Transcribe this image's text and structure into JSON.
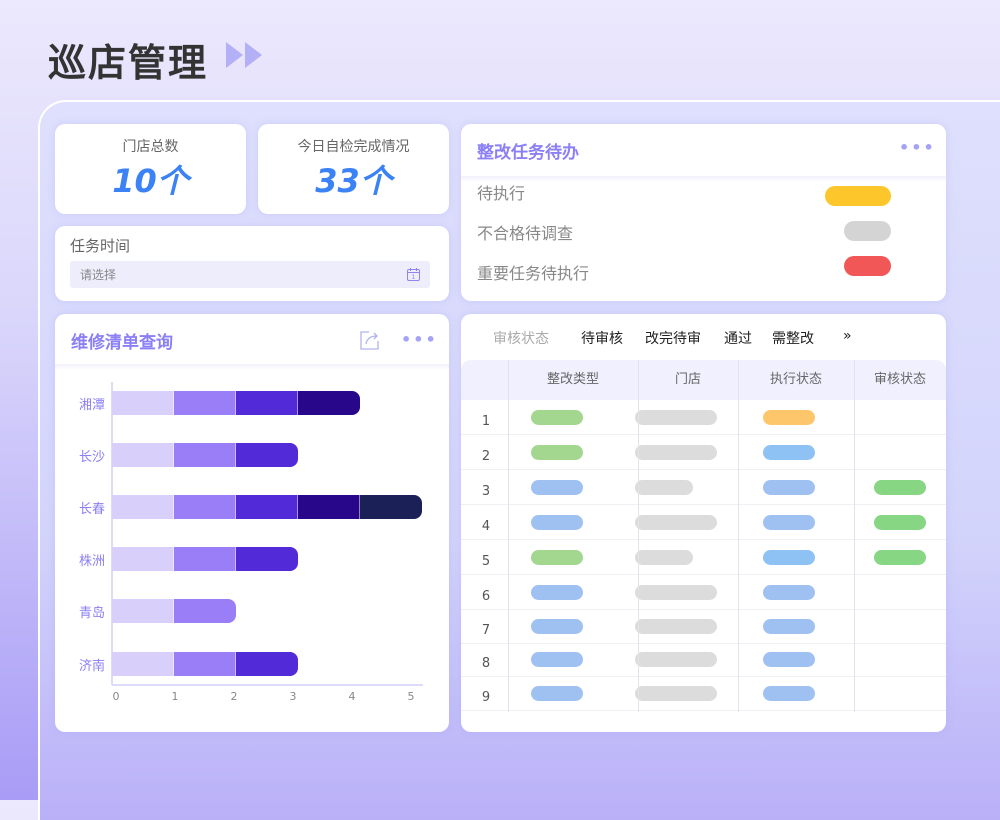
{
  "header": {
    "title": "巡店管理",
    "arrow_icon": "double-play-icon"
  },
  "stats": [
    {
      "label": "门店总数",
      "value": "10个"
    },
    {
      "label": "今日自检完成情况",
      "value": "33个"
    }
  ],
  "task_time": {
    "label": "任务时间",
    "placeholder": "请选择",
    "icon": "calendar-icon"
  },
  "todo": {
    "title": "整改任务待办",
    "items": [
      {
        "label": "待执行",
        "color": "#fdc72c"
      },
      {
        "label": "不合格待调查",
        "color": "#d4d4d4"
      },
      {
        "label": "重要任务待执行",
        "color": "#f25757"
      }
    ]
  },
  "repair": {
    "title": "维修清单查询"
  },
  "chart_data": {
    "type": "bar",
    "orientation": "horizontal",
    "stacked": true,
    "categories": [
      "湘潭",
      "长沙",
      "长春",
      "株洲",
      "青岛",
      "济南"
    ],
    "series": [
      {
        "values": [
          1,
          1,
          1,
          1,
          1,
          1
        ],
        "color": "#d9cffb"
      },
      {
        "values": [
          1,
          1,
          1,
          1,
          1,
          1
        ],
        "color": "#9a7ef7"
      },
      {
        "values": [
          1,
          1,
          1,
          1,
          0,
          1
        ],
        "color": "#532ad8"
      },
      {
        "values": [
          1,
          0,
          1,
          0,
          0,
          0
        ],
        "color": "#28078a"
      },
      {
        "values": [
          0,
          0,
          1,
          0,
          0,
          0
        ],
        "color": "#1b2157"
      }
    ],
    "xticks": [
      "0",
      "1",
      "2",
      "3",
      "4",
      "5"
    ],
    "xlim": [
      0,
      5
    ],
    "grid": false,
    "legend": "none"
  },
  "audit": {
    "filter_label": "审核状态",
    "tabs": [
      "待审核",
      "改完待审",
      "通过",
      "需整改"
    ],
    "more": "»",
    "columns": [
      "整改类型",
      "门店",
      "执行状态",
      "审核状态"
    ],
    "rows": [
      {
        "index": "1",
        "type": "#a3d78f",
        "store": "long",
        "exec": "#fdc66b",
        "audit": null
      },
      {
        "index": "2",
        "type": "#a3d78f",
        "store": "long",
        "exec": "#8ec2f5",
        "audit": null
      },
      {
        "index": "3",
        "type": "#9fc1f2",
        "store": "short",
        "exec": "#9fc1f2",
        "audit": "#86d683"
      },
      {
        "index": "4",
        "type": "#9fc1f2",
        "store": "long",
        "exec": "#9fc1f2",
        "audit": "#86d683"
      },
      {
        "index": "5",
        "type": "#a3d78f",
        "store": "short",
        "exec": "#8ec2f5",
        "audit": "#86d683"
      },
      {
        "index": "6",
        "type": "#9fc1f2",
        "store": "long",
        "exec": "#9fc1f2",
        "audit": null
      },
      {
        "index": "7",
        "type": "#9fc1f2",
        "store": "long",
        "exec": "#9fc1f2",
        "audit": null
      },
      {
        "index": "8",
        "type": "#9fc1f2",
        "store": "long",
        "exec": "#9fc1f2",
        "audit": null
      },
      {
        "index": "9",
        "type": "#9fc1f2",
        "store": "long",
        "exec": "#9fc1f2",
        "audit": null
      }
    ]
  }
}
